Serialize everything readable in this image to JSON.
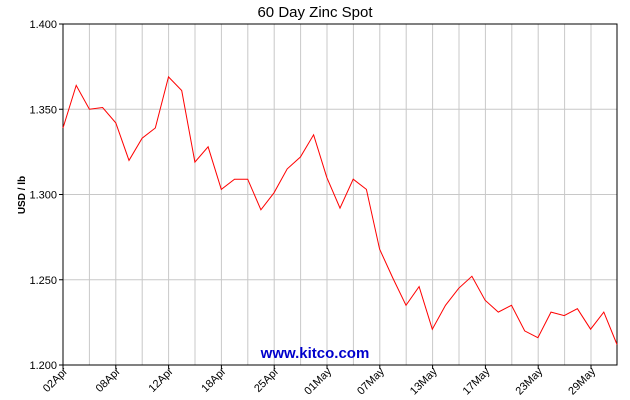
{
  "chart_data": {
    "type": "line",
    "title": "60 Day Zinc Spot",
    "ylabel": "USD / lb",
    "xlabel": "",
    "ylim": [
      1.2,
      1.4
    ],
    "yticks": [
      "1.200",
      "1.250",
      "1.300",
      "1.350",
      "1.400"
    ],
    "xticks": [
      "02Apr",
      "08Apr",
      "12Apr",
      "18Apr",
      "25Apr",
      "01May",
      "07May",
      "13May",
      "17May",
      "23May",
      "29May"
    ],
    "grid": true,
    "line_color": "#ff0000",
    "watermark": "www.kitco.com",
    "watermark_color": "#0000cc",
    "series": [
      {
        "values": [
          1.339,
          1.364,
          1.35,
          1.351,
          1.342,
          1.32,
          1.333,
          1.339,
          1.369,
          1.361,
          1.319,
          1.328,
          1.303,
          1.309,
          1.309,
          1.291,
          1.301,
          1.315,
          1.322,
          1.335,
          1.31,
          1.292,
          1.309,
          1.303,
          1.268,
          1.251,
          1.235,
          1.246,
          1.221,
          1.235,
          1.245,
          1.252,
          1.238,
          1.231,
          1.235,
          1.22,
          1.216,
          1.231,
          1.229,
          1.233,
          1.221,
          1.231,
          1.212
        ]
      }
    ]
  }
}
